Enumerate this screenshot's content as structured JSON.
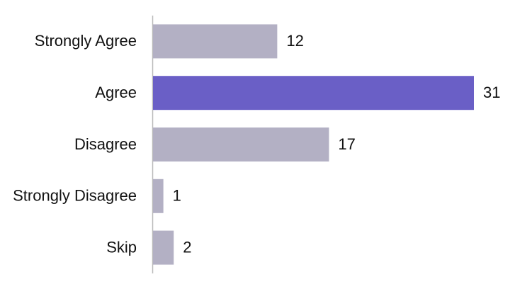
{
  "chart_data": {
    "type": "bar",
    "orientation": "horizontal",
    "categories": [
      "Strongly Agree",
      "Agree",
      "Disagree",
      "Strongly Disagree",
      "Skip"
    ],
    "values": [
      12,
      31,
      17,
      1,
      2
    ],
    "colors": [
      "#b3b0c4",
      "#6a5fc6",
      "#b3b0c4",
      "#b3b0c4",
      "#b3b0c4"
    ],
    "data_labels": true
  }
}
